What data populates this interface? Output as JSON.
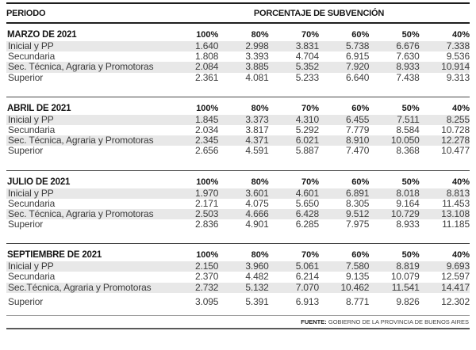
{
  "chart_data": {
    "type": "table",
    "header": {
      "period": "PERIODO",
      "subsidy": "PORCENTAJE DE SUBVENCIÓN"
    },
    "columns": [
      "100%",
      "80%",
      "70%",
      "60%",
      "50%",
      "40%"
    ],
    "sections": [
      {
        "title": "MARZO DE 2021",
        "rows": [
          {
            "label": "Inicial y PP",
            "values": [
              "1.640",
              "2.998",
              "3.831",
              "5.738",
              "6.676",
              "7.338"
            ]
          },
          {
            "label": "Secundaria",
            "values": [
              "1.808",
              "3.393",
              "4.704",
              "6.915",
              "7.630",
              "9.536"
            ]
          },
          {
            "label": "Sec. Técnica, Agraria y Promotoras",
            "values": [
              "2.084",
              "3.885",
              "5.352",
              "7.920",
              "8.933",
              "10.914"
            ]
          },
          {
            "label": "Superior",
            "values": [
              "2.361",
              "4.081",
              "5.233",
              "6.640",
              "7.438",
              "9.313"
            ]
          }
        ]
      },
      {
        "title": "ABRIL DE 2021",
        "rows": [
          {
            "label": "Inicial y PP",
            "values": [
              "1.845",
              "3.373",
              "4.310",
              "6.455",
              "7.511",
              "8.255"
            ]
          },
          {
            "label": "Secundaria",
            "values": [
              "2.034",
              "3.817",
              "5.292",
              "7.779",
              "8.584",
              "10.728"
            ]
          },
          {
            "label": "Sec. Técnica, Agraria y Promotoras",
            "values": [
              "2.345",
              "4.371",
              "6.021",
              "8.910",
              "10.050",
              "12.278"
            ]
          },
          {
            "label": "Superior",
            "values": [
              "2.656",
              "4.591",
              "5.887",
              "7.470",
              "8.368",
              "10.477"
            ]
          }
        ]
      },
      {
        "title": "JULIO DE 2021",
        "rows": [
          {
            "label": "Inicial y PP",
            "values": [
              "1.970",
              "3.601",
              "4.601",
              "6.891",
              "8.018",
              "8.813"
            ]
          },
          {
            "label": "Secundaria",
            "values": [
              "2.171",
              "4.075",
              "5.650",
              "8.305",
              "9.164",
              "11.453"
            ]
          },
          {
            "label": "Sec. Técnica, Agraria y Promotoras",
            "values": [
              "2.503",
              "4.666",
              "6.428",
              "9.512",
              "10.729",
              "13.108"
            ]
          },
          {
            "label": "Superior",
            "values": [
              "2.836",
              "4.901",
              "6.285",
              "7.975",
              "8.933",
              "11.185"
            ]
          }
        ]
      },
      {
        "title": "SEPTIEMBRE DE 2021",
        "rows": [
          {
            "label": "Inicial y PP",
            "values": [
              "2.150",
              "3.960",
              "5.061",
              "7.580",
              "8.819",
              "9.693"
            ]
          },
          {
            "label": "Secundaria",
            "values": [
              "2.370",
              "4.482",
              "6.214",
              "9.135",
              "10.079",
              "12.597"
            ]
          },
          {
            "label": "Sec.Técnica, Agraria y Promotoras",
            "values": [
              "2.732",
              "5.132",
              "7.070",
              "10.462",
              "11.541",
              "14.417"
            ]
          },
          {
            "label": "Superior",
            "values": [
              "3.095",
              "5.391",
              "6.913",
              "8.771",
              "9.826",
              "12.302"
            ]
          }
        ]
      }
    ],
    "source": {
      "label": "FUENTE:",
      "text": "GOBIERNO DE LA PROVINCIA DE BUENOS AIRES"
    }
  },
  "colors": {
    "stripe": "#e8e8e8",
    "rule_heavy": "#1e1e1e",
    "rule_light": "#474747",
    "heading": "#161616",
    "text": "#3c3c3c"
  }
}
